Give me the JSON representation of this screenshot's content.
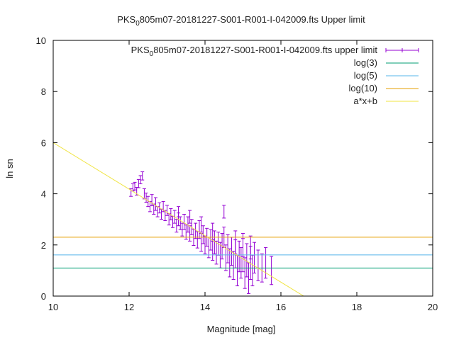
{
  "chart_data": {
    "type": "scatter",
    "title": {
      "prefix": "PKS",
      "sub": "0",
      "rest": "805m07-20181227-S001-R001-I-042009.fts Upper limit"
    },
    "xlabel": "Magnitude [mag]",
    "ylabel": "ln sn",
    "xlim": [
      10,
      20
    ],
    "ylim": [
      0,
      10
    ],
    "xticks": [
      "10",
      "12",
      "14",
      "16",
      "18",
      "20"
    ],
    "yticks": [
      "0",
      "2",
      "4",
      "6",
      "8",
      "10"
    ],
    "grid": false,
    "legend_position": "top-right",
    "series": [
      {
        "name": {
          "prefix": "PKS",
          "sub": "0",
          "rest": "805m07-20181227-S001-R001-I-042009.fts upper limit"
        },
        "kind": "errorbars",
        "color": "#9400d3",
        "points": [
          [
            12.05,
            4.05,
            0.15
          ],
          [
            12.1,
            4.25,
            0.14
          ],
          [
            12.15,
            4.3,
            0.15
          ],
          [
            12.2,
            4.1,
            0.15
          ],
          [
            12.25,
            4.4,
            0.16
          ],
          [
            12.3,
            4.55,
            0.16
          ],
          [
            12.35,
            4.7,
            0.16
          ],
          [
            12.4,
            4.0,
            0.2
          ],
          [
            12.45,
            3.85,
            0.18
          ],
          [
            12.5,
            3.7,
            0.2
          ],
          [
            12.55,
            3.5,
            0.2
          ],
          [
            12.6,
            3.75,
            0.22
          ],
          [
            12.65,
            3.4,
            0.2
          ],
          [
            12.7,
            3.6,
            0.25
          ],
          [
            12.75,
            3.3,
            0.2
          ],
          [
            12.8,
            3.45,
            0.2
          ],
          [
            12.85,
            3.2,
            0.2
          ],
          [
            12.9,
            3.5,
            0.2
          ],
          [
            12.95,
            3.15,
            0.2
          ],
          [
            13.0,
            3.35,
            0.2
          ],
          [
            13.05,
            3.0,
            0.22
          ],
          [
            13.1,
            3.2,
            0.22
          ],
          [
            13.15,
            2.9,
            0.22
          ],
          [
            13.2,
            3.1,
            0.25
          ],
          [
            13.25,
            2.75,
            0.25
          ],
          [
            13.3,
            3.0,
            0.25
          ],
          [
            13.35,
            2.85,
            0.25
          ],
          [
            13.4,
            2.6,
            0.25
          ],
          [
            13.45,
            2.9,
            0.3
          ],
          [
            13.5,
            2.5,
            0.28
          ],
          [
            13.55,
            2.8,
            0.3
          ],
          [
            13.6,
            2.45,
            0.3
          ],
          [
            13.65,
            2.7,
            0.3
          ],
          [
            13.7,
            2.3,
            0.32
          ],
          [
            13.75,
            2.55,
            0.3
          ],
          [
            13.8,
            2.2,
            0.32
          ],
          [
            13.85,
            2.6,
            0.35
          ],
          [
            13.9,
            2.1,
            0.35
          ],
          [
            13.95,
            2.4,
            0.35
          ],
          [
            14.0,
            2.0,
            0.35
          ],
          [
            14.05,
            2.3,
            0.35
          ],
          [
            14.1,
            1.9,
            0.4
          ],
          [
            14.15,
            2.2,
            0.4
          ],
          [
            14.2,
            1.8,
            0.4
          ],
          [
            14.25,
            2.1,
            0.45
          ],
          [
            14.3,
            1.7,
            0.45
          ],
          [
            14.35,
            2.05,
            0.45
          ],
          [
            14.4,
            1.6,
            0.5
          ],
          [
            14.45,
            1.95,
            0.5
          ],
          [
            14.5,
            3.3,
            0.25
          ],
          [
            14.55,
            1.5,
            0.5
          ],
          [
            14.6,
            1.85,
            0.55
          ],
          [
            14.65,
            1.3,
            0.55
          ],
          [
            14.7,
            1.75,
            0.55
          ],
          [
            14.75,
            1.2,
            0.55
          ],
          [
            14.8,
            1.65,
            0.55
          ],
          [
            14.85,
            1.0,
            0.6
          ],
          [
            14.9,
            1.55,
            0.6
          ],
          [
            14.95,
            1.3,
            0.6
          ],
          [
            15.0,
            1.6,
            0.65
          ],
          [
            15.05,
            0.9,
            0.6
          ],
          [
            15.1,
            1.4,
            0.65
          ],
          [
            15.15,
            0.7,
            0.6
          ],
          [
            15.2,
            1.3,
            0.65
          ],
          [
            15.25,
            1.0,
            0.6
          ],
          [
            15.3,
            1.5,
            0.6
          ],
          [
            15.4,
            1.2,
            0.6
          ],
          [
            15.5,
            1.1,
            0.55
          ],
          [
            15.6,
            1.3,
            0.6
          ],
          [
            15.75,
            1.0,
            0.55
          ],
          [
            13.3,
            3.3,
            0.2
          ],
          [
            13.6,
            3.1,
            0.25
          ],
          [
            13.9,
            2.8,
            0.3
          ],
          [
            14.2,
            2.5,
            0.35
          ],
          [
            14.5,
            2.3,
            0.4
          ],
          [
            14.8,
            2.1,
            0.45
          ],
          [
            15.0,
            2.0,
            0.45
          ],
          [
            15.2,
            1.9,
            0.45
          ]
        ]
      },
      {
        "name": "log(3)",
        "kind": "hline",
        "y": 1.0986,
        "color": "#009e73"
      },
      {
        "name": "log(5)",
        "kind": "hline",
        "y": 1.6094,
        "color": "#56b4e9"
      },
      {
        "name": "log(10)",
        "kind": "hline",
        "y": 2.3026,
        "color": "#e69f00"
      },
      {
        "name": "a*x+b",
        "kind": "line",
        "color": "#f0e442",
        "x": [
          10,
          16.6
        ],
        "y": [
          6.0,
          0.0
        ]
      }
    ]
  }
}
